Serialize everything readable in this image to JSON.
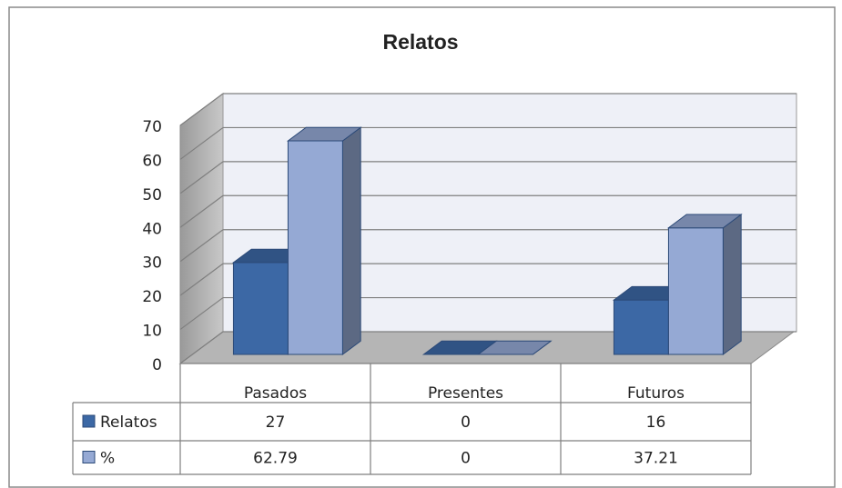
{
  "chart_data": {
    "type": "bar3d",
    "title": "Relatos",
    "categories": [
      "Pasados",
      "Presentes",
      "Futuros"
    ],
    "series": [
      {
        "name": "Relatos",
        "color": "#3c68a5",
        "values": [
          27,
          0,
          16
        ]
      },
      {
        "name": "%",
        "color": "#95a9d4",
        "values": [
          62.79,
          0,
          37.21
        ]
      }
    ],
    "ylim": [
      0,
      70
    ],
    "yticks": [
      0,
      10,
      20,
      30,
      40,
      50,
      60,
      70
    ],
    "grid": true
  }
}
